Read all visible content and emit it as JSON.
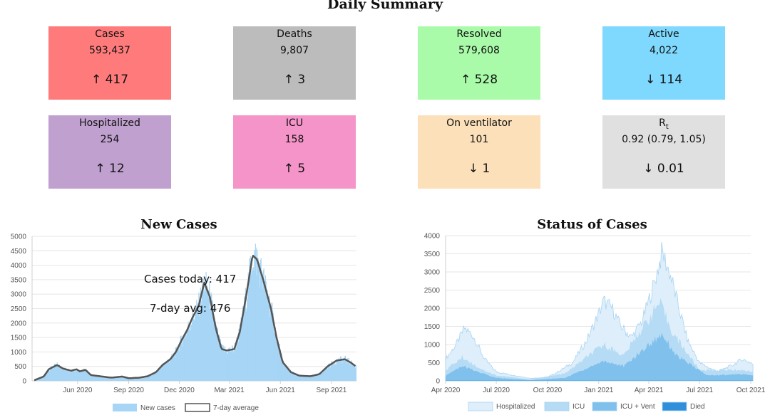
{
  "page_title": "Daily Summary",
  "cards": [
    {
      "label": "Cases",
      "value": "593,437",
      "change": "↑ 417",
      "color": "#ff7b7b"
    },
    {
      "label": "Deaths",
      "value": "9,807",
      "change": "↑ 3",
      "color": "#bcbcbc"
    },
    {
      "label": "Resolved",
      "value": "579,608",
      "change": "↑ 528",
      "color": "#a9fba9"
    },
    {
      "label": "Active",
      "value": "4,022",
      "change": "↓ 114",
      "color": "#7fd8fd"
    },
    {
      "label": "Hospitalized",
      "value": "254",
      "change": "↑ 12",
      "color": "#c0a0cf"
    },
    {
      "label": "ICU",
      "value": "158",
      "change": "↑ 5",
      "color": "#f494c8"
    },
    {
      "label": "On ventilator",
      "value": "101",
      "change": "↓ 1",
      "color": "#fbe0b9"
    },
    {
      "label": "R",
      "label_sub": "t",
      "value": "0.92 (0.79, 1.05)",
      "change": "↓ 0.01",
      "color": "#e0e0e0"
    }
  ],
  "chart_data": [
    {
      "type": "bar",
      "title": "New Cases",
      "ylim": [
        0,
        5000
      ],
      "yticks": [
        "0",
        "500",
        "1000",
        "1500",
        "2000",
        "2500",
        "3000",
        "3500",
        "4000",
        "4500",
        "5000"
      ],
      "xticks": [
        "Jun 2020",
        "Sep 2020",
        "Dec 2020",
        "Mar 2021",
        "Jun 2021",
        "Sep 2021"
      ],
      "annotations": {
        "today": "Cases today: 417",
        "avg": "7-day avg: 476"
      },
      "legend": [
        "New cases",
        "7-day average"
      ],
      "colors": {
        "bars": "#a6d5f5",
        "line": "#555555"
      },
      "series": [
        {
          "name": "7-day average",
          "points": [
            [
              "2020-03-15",
              20
            ],
            [
              "2020-04-01",
              150
            ],
            [
              "2020-04-10",
              400
            ],
            [
              "2020-04-25",
              550
            ],
            [
              "2020-05-05",
              430
            ],
            [
              "2020-05-20",
              350
            ],
            [
              "2020-05-30",
              400
            ],
            [
              "2020-06-05",
              330
            ],
            [
              "2020-06-15",
              380
            ],
            [
              "2020-06-25",
              200
            ],
            [
              "2020-07-15",
              150
            ],
            [
              "2020-08-01",
              110
            ],
            [
              "2020-08-20",
              150
            ],
            [
              "2020-09-01",
              90
            ],
            [
              "2020-09-20",
              110
            ],
            [
              "2020-10-05",
              160
            ],
            [
              "2020-10-20",
              300
            ],
            [
              "2020-11-01",
              550
            ],
            [
              "2020-11-15",
              750
            ],
            [
              "2020-11-25",
              1000
            ],
            [
              "2020-12-05",
              1400
            ],
            [
              "2020-12-15",
              1750
            ],
            [
              "2020-12-25",
              2200
            ],
            [
              "2021-01-05",
              2600
            ],
            [
              "2021-01-15",
              3400
            ],
            [
              "2021-01-25",
              2900
            ],
            [
              "2021-02-05",
              1800
            ],
            [
              "2021-02-15",
              1100
            ],
            [
              "2021-02-25",
              1050
            ],
            [
              "2021-03-10",
              1100
            ],
            [
              "2021-03-20",
              1700
            ],
            [
              "2021-04-01",
              3000
            ],
            [
              "2021-04-12",
              4350
            ],
            [
              "2021-04-20",
              4200
            ],
            [
              "2021-05-01",
              3500
            ],
            [
              "2021-05-15",
              2500
            ],
            [
              "2021-05-25",
              1500
            ],
            [
              "2021-06-05",
              650
            ],
            [
              "2021-06-20",
              300
            ],
            [
              "2021-07-05",
              180
            ],
            [
              "2021-07-25",
              160
            ],
            [
              "2021-08-10",
              230
            ],
            [
              "2021-08-25",
              500
            ],
            [
              "2021-09-10",
              700
            ],
            [
              "2021-09-25",
              750
            ],
            [
              "2021-10-05",
              640
            ],
            [
              "2021-10-15",
              500
            ]
          ]
        }
      ]
    },
    {
      "type": "area",
      "title": "Status of Cases",
      "ylim": [
        0,
        4000
      ],
      "yticks": [
        "0",
        "500",
        "1000",
        "1500",
        "2000",
        "2500",
        "3000",
        "3500",
        "4000"
      ],
      "xticks": [
        "Apr 2020",
        "Jul 2020",
        "Oct 2020",
        "Jan 2021",
        "Apr 2021",
        "Jul 2021",
        "Oct 2021"
      ],
      "legend": [
        "Hospitalized",
        "ICU",
        "ICU + Vent",
        "Died"
      ],
      "colors": {
        "Hospitalized": "#deeffb",
        "ICU": "#b6dbf4",
        "ICU + Vent": "#7fc0ec",
        "Died": "#2f8fdb"
      },
      "series": [
        {
          "name": "Hospitalized",
          "points": [
            [
              "2020-04-01",
              600
            ],
            [
              "2020-04-20",
              1000
            ],
            [
              "2020-05-05",
              1450
            ],
            [
              "2020-05-20",
              1250
            ],
            [
              "2020-06-10",
              600
            ],
            [
              "2020-07-01",
              250
            ],
            [
              "2020-08-01",
              150
            ],
            [
              "2020-09-01",
              70
            ],
            [
              "2020-10-01",
              100
            ],
            [
              "2020-10-20",
              250
            ],
            [
              "2020-11-15",
              500
            ],
            [
              "2020-12-10",
              1100
            ],
            [
              "2021-01-01",
              1850
            ],
            [
              "2021-01-10",
              2200
            ],
            [
              "2021-01-25",
              2000
            ],
            [
              "2021-02-10",
              1500
            ],
            [
              "2021-03-01",
              1200
            ],
            [
              "2021-03-20",
              1650
            ],
            [
              "2021-04-10",
              2650
            ],
            [
              "2021-04-25",
              3550
            ],
            [
              "2021-05-10",
              2900
            ],
            [
              "2021-05-25",
              2000
            ],
            [
              "2021-06-10",
              1100
            ],
            [
              "2021-07-01",
              500
            ],
            [
              "2021-08-01",
              250
            ],
            [
              "2021-09-01",
              450
            ],
            [
              "2021-09-15",
              600
            ],
            [
              "2021-10-01",
              500
            ],
            [
              "2021-10-05",
              450
            ]
          ]
        },
        {
          "name": "ICU",
          "points": [
            [
              "2020-04-01",
              300
            ],
            [
              "2020-05-01",
              650
            ],
            [
              "2020-06-01",
              350
            ],
            [
              "2020-07-01",
              150
            ],
            [
              "2020-09-01",
              40
            ],
            [
              "2020-11-01",
              200
            ],
            [
              "2021-01-10",
              1000
            ],
            [
              "2021-02-15",
              700
            ],
            [
              "2021-04-20",
              2150
            ],
            [
              "2021-05-15",
              1300
            ],
            [
              "2021-07-01",
              300
            ],
            [
              "2021-09-15",
              300
            ],
            [
              "2021-10-05",
              250
            ]
          ]
        },
        {
          "name": "ICU + Vent",
          "points": [
            [
              "2020-04-01",
              150
            ],
            [
              "2020-05-01",
              400
            ],
            [
              "2020-07-01",
              80
            ],
            [
              "2020-09-01",
              20
            ],
            [
              "2020-11-01",
              80
            ],
            [
              "2021-01-10",
              550
            ],
            [
              "2021-02-15",
              400
            ],
            [
              "2021-04-25",
              1300
            ],
            [
              "2021-05-20",
              700
            ],
            [
              "2021-07-15",
              150
            ],
            [
              "2021-09-15",
              180
            ],
            [
              "2021-10-05",
              150
            ]
          ]
        },
        {
          "name": "Died",
          "points": [
            [
              "2020-04-01",
              5
            ],
            [
              "2021-10-05",
              5
            ]
          ]
        }
      ]
    }
  ]
}
